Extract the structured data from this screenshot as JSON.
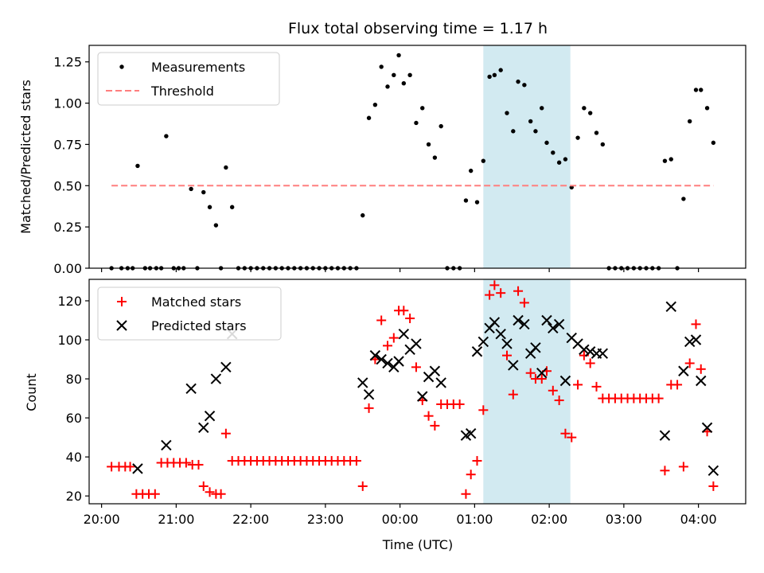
{
  "chart_data": [
    {
      "type": "scatter",
      "title": "Flux total observing time = 1.17 h",
      "ylabel": "Matched/Predicted stars",
      "xlabel": "",
      "xlim": [
        "19:50",
        "04:38"
      ],
      "ylim": [
        0,
        1.35
      ],
      "x_ticks": [
        "20:00",
        "21:00",
        "22:00",
        "23:00",
        "00:00",
        "01:00",
        "02:00",
        "03:00",
        "04:00"
      ],
      "y_ticks": [
        "0.00",
        "0.25",
        "0.50",
        "0.75",
        "1.00",
        "1.25"
      ],
      "legend_position": "top-left",
      "grid": false,
      "highlight_span": [
        "01:07",
        "02:17"
      ],
      "highlight_color": "#add8e6",
      "series": [
        {
          "name": "Measurements",
          "marker": "dot",
          "color": "#000000",
          "points": [
            [
              "20:08",
              0
            ],
            [
              "20:16",
              0
            ],
            [
              "20:21",
              0
            ],
            [
              "20:25",
              0
            ],
            [
              "20:29",
              0.62
            ],
            [
              "20:35",
              0
            ],
            [
              "20:39",
              0
            ],
            [
              "20:44",
              0
            ],
            [
              "20:48",
              0
            ],
            [
              "20:52",
              0.8
            ],
            [
              "20:58",
              0
            ],
            [
              "21:02",
              0
            ],
            [
              "21:06",
              0
            ],
            [
              "21:12",
              0.48
            ],
            [
              "21:17",
              0
            ],
            [
              "21:22",
              0.46
            ],
            [
              "21:27",
              0.37
            ],
            [
              "21:32",
              0.26
            ],
            [
              "21:36",
              0
            ],
            [
              "21:40",
              0.61
            ],
            [
              "21:45",
              0.37
            ],
            [
              "21:50",
              0
            ],
            [
              "21:55",
              0
            ],
            [
              "22:00",
              0
            ],
            [
              "22:05",
              0
            ],
            [
              "22:10",
              0
            ],
            [
              "22:15",
              0
            ],
            [
              "22:20",
              0
            ],
            [
              "22:25",
              0
            ],
            [
              "22:30",
              0
            ],
            [
              "22:35",
              0
            ],
            [
              "22:40",
              0
            ],
            [
              "22:45",
              0
            ],
            [
              "22:50",
              0
            ],
            [
              "22:55",
              0
            ],
            [
              "23:00",
              0
            ],
            [
              "23:05",
              0
            ],
            [
              "23:10",
              0
            ],
            [
              "23:15",
              0
            ],
            [
              "23:20",
              0
            ],
            [
              "23:25",
              0
            ],
            [
              "23:30",
              0.32
            ],
            [
              "23:35",
              0.91
            ],
            [
              "23:40",
              0.99
            ],
            [
              "23:45",
              1.22
            ],
            [
              "23:50",
              1.1
            ],
            [
              "23:55",
              1.17
            ],
            [
              "23:59",
              1.29
            ],
            [
              "00:03",
              1.12
            ],
            [
              "00:08",
              1.17
            ],
            [
              "00:13",
              0.88
            ],
            [
              "00:18",
              0.97
            ],
            [
              "00:23",
              0.75
            ],
            [
              "00:28",
              0.67
            ],
            [
              "00:33",
              0.86
            ],
            [
              "00:38",
              0
            ],
            [
              "00:43",
              0
            ],
            [
              "00:48",
              0
            ],
            [
              "00:53",
              0.41
            ],
            [
              "00:57",
              0.59
            ],
            [
              "01:02",
              0.4
            ],
            [
              "01:07",
              0.65
            ],
            [
              "01:12",
              1.16
            ],
            [
              "01:16",
              1.17
            ],
            [
              "01:21",
              1.2
            ],
            [
              "01:26",
              0.94
            ],
            [
              "01:31",
              0.83
            ],
            [
              "01:35",
              1.13
            ],
            [
              "01:40",
              1.11
            ],
            [
              "01:45",
              0.89
            ],
            [
              "01:49",
              0.83
            ],
            [
              "01:54",
              0.97
            ],
            [
              "01:58",
              0.76
            ],
            [
              "02:03",
              0.7
            ],
            [
              "02:08",
              0.64
            ],
            [
              "02:13",
              0.66
            ],
            [
              "02:18",
              0.49
            ],
            [
              "02:23",
              0.79
            ],
            [
              "02:28",
              0.97
            ],
            [
              "02:33",
              0.94
            ],
            [
              "02:38",
              0.82
            ],
            [
              "02:43",
              0.75
            ],
            [
              "02:48",
              0
            ],
            [
              "02:53",
              0
            ],
            [
              "02:58",
              0
            ],
            [
              "03:03",
              0
            ],
            [
              "03:08",
              0
            ],
            [
              "03:13",
              0
            ],
            [
              "03:18",
              0
            ],
            [
              "03:23",
              0
            ],
            [
              "03:28",
              0
            ],
            [
              "03:33",
              0.65
            ],
            [
              "03:38",
              0.66
            ],
            [
              "03:43",
              0
            ],
            [
              "03:48",
              0.42
            ],
            [
              "03:53",
              0.89
            ],
            [
              "03:58",
              1.08
            ],
            [
              "04:02",
              1.08
            ],
            [
              "04:07",
              0.97
            ],
            [
              "04:12",
              0.76
            ]
          ]
        },
        {
          "name": "Threshold",
          "line": "dashed",
          "color": "#ff7f7f",
          "points": [
            [
              "20:08",
              0.5
            ],
            [
              "04:12",
              0.5
            ]
          ]
        }
      ]
    },
    {
      "type": "scatter",
      "title": "",
      "xlabel": "Time (UTC)",
      "ylabel": "Count",
      "xlim": [
        "19:50",
        "04:38"
      ],
      "ylim": [
        16,
        131
      ],
      "x_ticks": [
        "20:00",
        "21:00",
        "22:00",
        "23:00",
        "00:00",
        "01:00",
        "02:00",
        "03:00",
        "04:00"
      ],
      "y_ticks": [
        "20",
        "40",
        "60",
        "80",
        "100",
        "120"
      ],
      "legend_position": "top-left",
      "grid": false,
      "highlight_span": [
        "01:07",
        "02:17"
      ],
      "highlight_color": "#add8e6",
      "series": [
        {
          "name": "Matched stars",
          "marker": "plus",
          "color": "#ff0000",
          "points": [
            [
              "20:08",
              35
            ],
            [
              "20:14",
              35
            ],
            [
              "20:19",
              35
            ],
            [
              "20:23",
              35
            ],
            [
              "20:28",
              21
            ],
            [
              "20:33",
              21
            ],
            [
              "20:38",
              21
            ],
            [
              "20:43",
              21
            ],
            [
              "20:48",
              37
            ],
            [
              "20:53",
              37
            ],
            [
              "20:58",
              37
            ],
            [
              "21:03",
              37
            ],
            [
              "21:08",
              37
            ],
            [
              "21:13",
              36
            ],
            [
              "21:18",
              36
            ],
            [
              "21:22",
              25
            ],
            [
              "21:27",
              22
            ],
            [
              "21:32",
              21
            ],
            [
              "21:36",
              21
            ],
            [
              "21:40",
              52
            ],
            [
              "21:45",
              38
            ],
            [
              "21:50",
              38
            ],
            [
              "21:55",
              38
            ],
            [
              "22:00",
              38
            ],
            [
              "22:05",
              38
            ],
            [
              "22:10",
              38
            ],
            [
              "22:15",
              38
            ],
            [
              "22:20",
              38
            ],
            [
              "22:25",
              38
            ],
            [
              "22:30",
              38
            ],
            [
              "22:35",
              38
            ],
            [
              "22:40",
              38
            ],
            [
              "22:45",
              38
            ],
            [
              "22:50",
              38
            ],
            [
              "22:55",
              38
            ],
            [
              "23:00",
              38
            ],
            [
              "23:05",
              38
            ],
            [
              "23:10",
              38
            ],
            [
              "23:15",
              38
            ],
            [
              "23:20",
              38
            ],
            [
              "23:25",
              38
            ],
            [
              "23:30",
              25
            ],
            [
              "23:35",
              65
            ],
            [
              "23:40",
              90
            ],
            [
              "23:45",
              110
            ],
            [
              "23:50",
              97
            ],
            [
              "23:55",
              101
            ],
            [
              "23:59",
              115
            ],
            [
              "00:03",
              115
            ],
            [
              "00:08",
              111
            ],
            [
              "00:13",
              86
            ],
            [
              "00:18",
              69
            ],
            [
              "00:23",
              61
            ],
            [
              "00:28",
              56
            ],
            [
              "00:33",
              67
            ],
            [
              "00:38",
              67
            ],
            [
              "00:43",
              67
            ],
            [
              "00:48",
              67
            ],
            [
              "00:53",
              21
            ],
            [
              "00:57",
              31
            ],
            [
              "01:02",
              38
            ],
            [
              "01:07",
              64
            ],
            [
              "01:12",
              123
            ],
            [
              "01:16",
              128
            ],
            [
              "01:21",
              124
            ],
            [
              "01:26",
              92
            ],
            [
              "01:31",
              72
            ],
            [
              "01:35",
              125
            ],
            [
              "01:40",
              119
            ],
            [
              "01:45",
              83
            ],
            [
              "01:49",
              80
            ],
            [
              "01:54",
              80
            ],
            [
              "01:58",
              84
            ],
            [
              "02:03",
              74
            ],
            [
              "02:08",
              69
            ],
            [
              "02:13",
              52
            ],
            [
              "02:18",
              50
            ],
            [
              "02:23",
              77
            ],
            [
              "02:28",
              92
            ],
            [
              "02:33",
              88
            ],
            [
              "02:38",
              76
            ],
            [
              "02:43",
              70
            ],
            [
              "02:48",
              70
            ],
            [
              "02:53",
              70
            ],
            [
              "02:58",
              70
            ],
            [
              "03:03",
              70
            ],
            [
              "03:08",
              70
            ],
            [
              "03:13",
              70
            ],
            [
              "03:18",
              70
            ],
            [
              "03:23",
              70
            ],
            [
              "03:28",
              70
            ],
            [
              "03:33",
              33
            ],
            [
              "03:38",
              77
            ],
            [
              "03:43",
              77
            ],
            [
              "03:48",
              35
            ],
            [
              "03:53",
              88
            ],
            [
              "03:58",
              108
            ],
            [
              "04:02",
              85
            ],
            [
              "04:07",
              53
            ],
            [
              "04:12",
              25
            ]
          ]
        },
        {
          "name": "Predicted stars",
          "marker": "x",
          "color": "#000000",
          "points": [
            [
              "20:29",
              34
            ],
            [
              "20:52",
              46
            ],
            [
              "21:12",
              75
            ],
            [
              "21:22",
              55
            ],
            [
              "21:27",
              61
            ],
            [
              "21:32",
              80
            ],
            [
              "21:40",
              86
            ],
            [
              "21:45",
              103
            ],
            [
              "23:30",
              78
            ],
            [
              "23:35",
              72
            ],
            [
              "23:40",
              92
            ],
            [
              "23:45",
              90
            ],
            [
              "23:50",
              88
            ],
            [
              "23:55",
              86
            ],
            [
              "23:59",
              89
            ],
            [
              "00:03",
              103
            ],
            [
              "00:08",
              95
            ],
            [
              "00:13",
              98
            ],
            [
              "00:18",
              71
            ],
            [
              "00:23",
              81
            ],
            [
              "00:28",
              84
            ],
            [
              "00:33",
              78
            ],
            [
              "00:53",
              51
            ],
            [
              "00:57",
              52
            ],
            [
              "01:02",
              94
            ],
            [
              "01:07",
              99
            ],
            [
              "01:12",
              106
            ],
            [
              "01:16",
              109
            ],
            [
              "01:21",
              103
            ],
            [
              "01:26",
              98
            ],
            [
              "01:31",
              87
            ],
            [
              "01:35",
              110
            ],
            [
              "01:40",
              108
            ],
            [
              "01:45",
              93
            ],
            [
              "01:49",
              96
            ],
            [
              "01:54",
              83
            ],
            [
              "01:58",
              110
            ],
            [
              "02:03",
              106
            ],
            [
              "02:08",
              108
            ],
            [
              "02:13",
              79
            ],
            [
              "02:18",
              101
            ],
            [
              "02:23",
              98
            ],
            [
              "02:28",
              95
            ],
            [
              "02:33",
              94
            ],
            [
              "02:38",
              93
            ],
            [
              "02:43",
              93
            ],
            [
              "03:33",
              51
            ],
            [
              "03:38",
              117
            ],
            [
              "03:48",
              84
            ],
            [
              "03:53",
              99
            ],
            [
              "03:58",
              100
            ],
            [
              "04:02",
              79
            ],
            [
              "04:07",
              55
            ],
            [
              "04:12",
              33
            ]
          ]
        }
      ]
    }
  ]
}
